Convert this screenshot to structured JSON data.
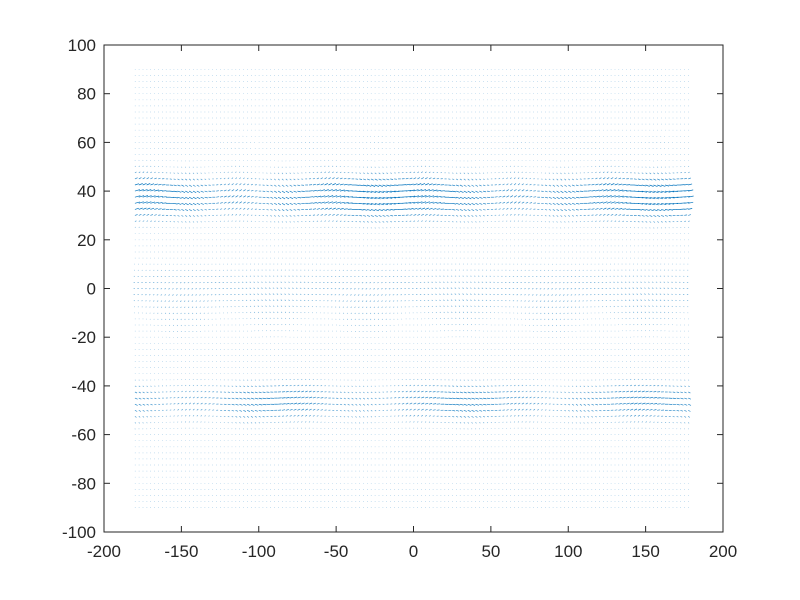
{
  "chart_data": {
    "type": "quiver",
    "title": "",
    "xlabel": "",
    "ylabel": "",
    "xlim": [
      -200,
      200
    ],
    "ylim": [
      -100,
      100
    ],
    "xticks": [
      "-200",
      "-150",
      "-100",
      "-50",
      "0",
      "50",
      "100",
      "150",
      "200"
    ],
    "yticks": [
      "-100",
      "-80",
      "-60",
      "-40",
      "-20",
      "0",
      "20",
      "40",
      "60",
      "80",
      "100"
    ],
    "grid": false,
    "legend": "none",
    "vector_grid": {
      "x_range": [
        -180,
        177.5
      ],
      "y_range": [
        -90,
        90
      ],
      "step": 2.5
    },
    "color": "#0072BD"
  }
}
